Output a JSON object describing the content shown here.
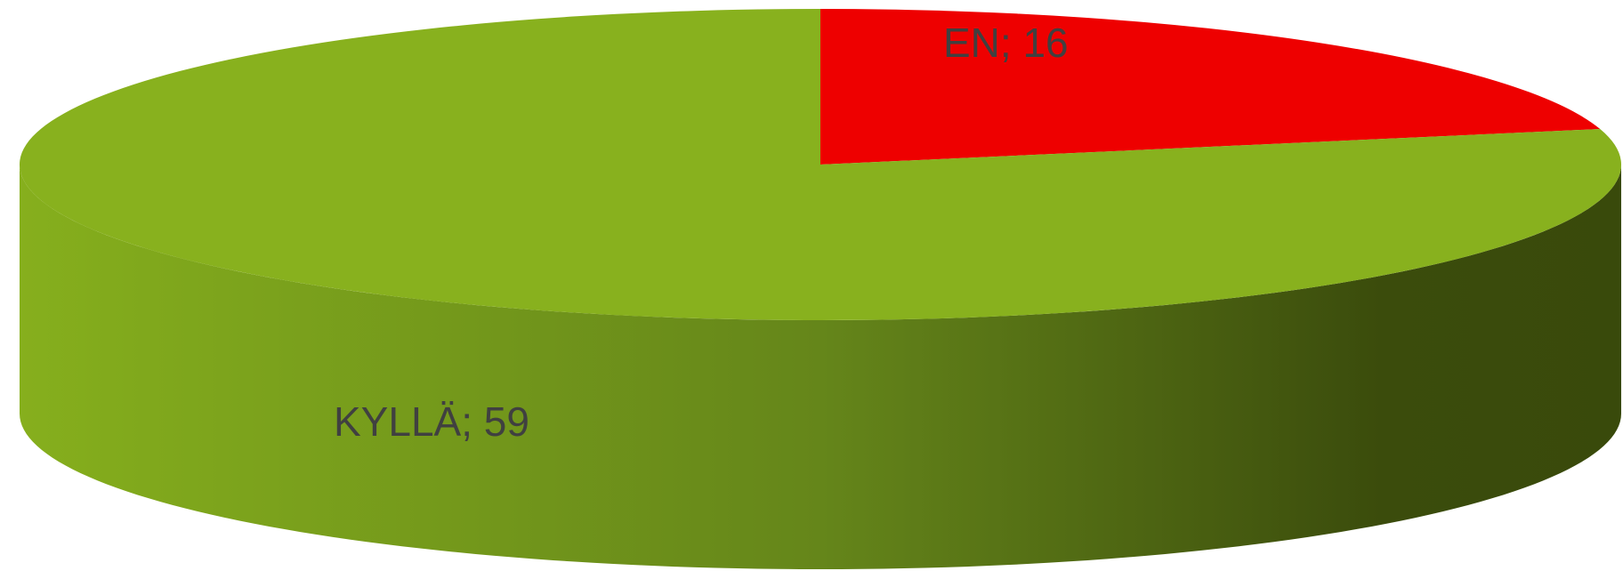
{
  "chart_data": {
    "type": "pie",
    "style": "3d",
    "categories": [
      "EN",
      "KYLLÄ"
    ],
    "values": [
      16,
      59
    ],
    "labels": [
      "EN; 16",
      "KYLLÄ; 59"
    ],
    "colors": [
      "#ee0000",
      "#88b11e"
    ],
    "side_color_light": "#86af1d",
    "side_color_dark": "#3a4a0b",
    "title": "",
    "legend": "none"
  }
}
